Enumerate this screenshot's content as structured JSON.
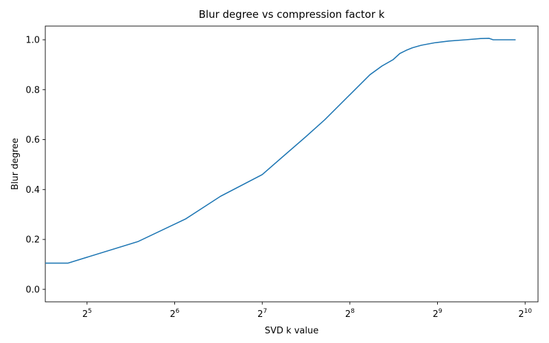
{
  "chart_data": {
    "type": "line",
    "title": "Blur degree vs compression factor k",
    "xlabel": "SVD k value",
    "ylabel": "Blur degree",
    "x_scale": "log2",
    "xlim": [
      23.0,
      1134.0
    ],
    "ylim": [
      -0.05,
      1.055
    ],
    "x_ticks": [
      {
        "value": 32,
        "base": "2",
        "exp": "5"
      },
      {
        "value": 64,
        "base": "2",
        "exp": "6"
      },
      {
        "value": 128,
        "base": "2",
        "exp": "7"
      },
      {
        "value": 256,
        "base": "2",
        "exp": "8"
      },
      {
        "value": 512,
        "base": "2",
        "exp": "9"
      },
      {
        "value": 1024,
        "base": "2",
        "exp": "10"
      }
    ],
    "y_ticks": [
      {
        "value": 0.0,
        "label": "0.0"
      },
      {
        "value": 0.2,
        "label": "0.2"
      },
      {
        "value": 0.4,
        "label": "0.4"
      },
      {
        "value": 0.6,
        "label": "0.6"
      },
      {
        "value": 0.8,
        "label": "0.8"
      },
      {
        "value": 1.0,
        "label": "1.0"
      }
    ],
    "grid": false,
    "series": [
      {
        "color": "#1f77b4",
        "x": [
          23,
          27.5,
          48,
          70,
          92,
          128,
          150,
          180,
          210,
          256,
          300,
          330,
          360,
          380,
          400,
          420,
          450,
          500,
          560,
          640,
          720,
          770,
          795,
          840,
          950
        ],
        "y": [
          0.105,
          0.105,
          0.192,
          0.283,
          0.373,
          0.46,
          0.53,
          0.61,
          0.68,
          0.78,
          0.86,
          0.895,
          0.92,
          0.945,
          0.958,
          0.968,
          0.978,
          0.988,
          0.995,
          1.0,
          1.005,
          1.006,
          1.0,
          1.0,
          1.0
        ]
      }
    ]
  }
}
